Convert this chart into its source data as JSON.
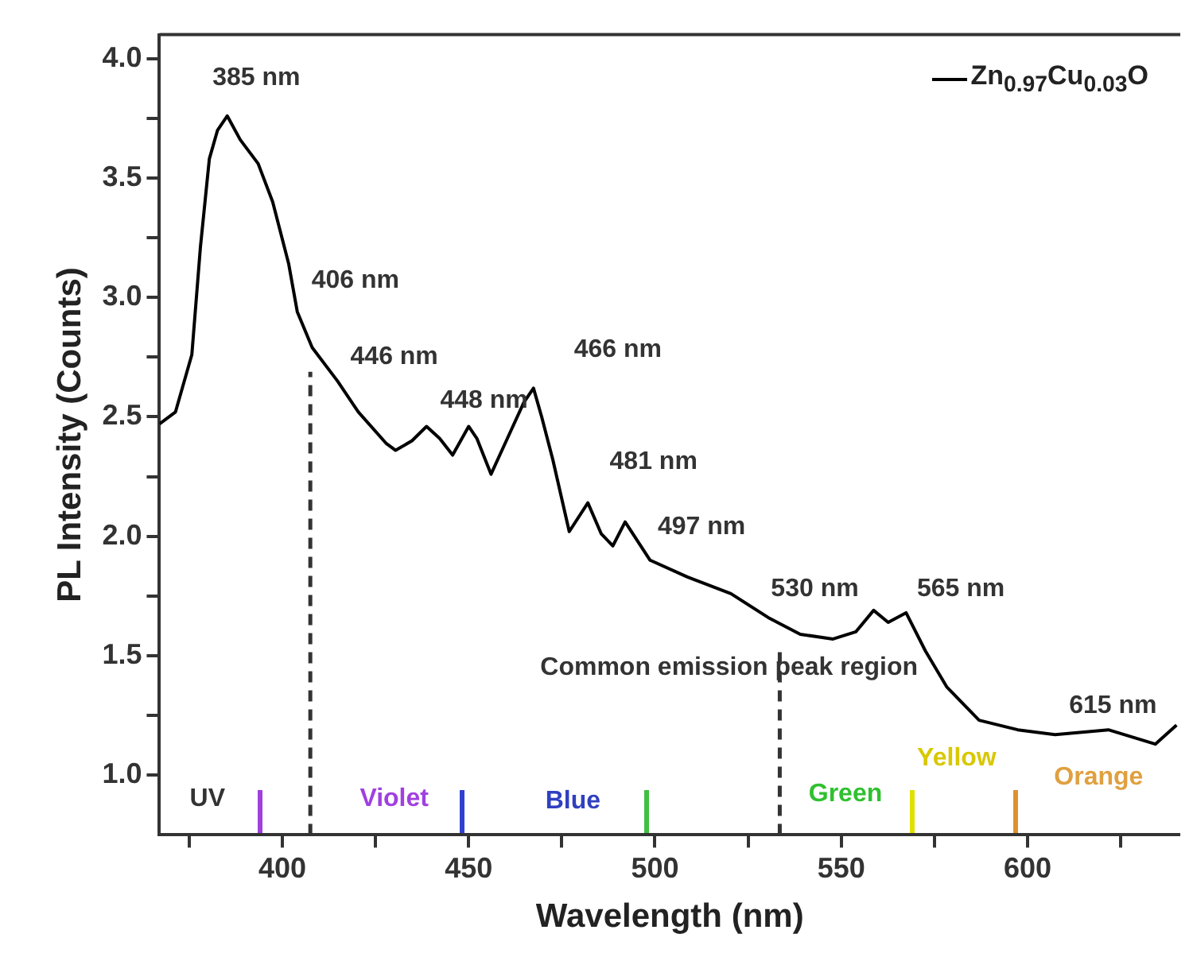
{
  "chart_data": {
    "type": "line",
    "xlabel": "Wavelength (nm)",
    "ylabel": "PL Intensity (Counts)",
    "xlim": [
      367,
      641
    ],
    "ylim": [
      0.75,
      4.1
    ],
    "xticks": [
      {
        "value": 375,
        "label": null
      },
      400,
      {
        "value": 425,
        "label": null
      },
      450,
      {
        "value": 475,
        "label": null
      },
      500,
      {
        "value": 525,
        "label": null
      },
      550,
      {
        "value": 575,
        "label": null
      },
      600,
      {
        "value": 625,
        "label": null
      }
    ],
    "yticks": [
      {
        "value": 1,
        "label": "1.0"
      },
      {
        "value": 1.25,
        "label": null
      },
      1.5,
      {
        "value": 1.75,
        "label": null
      },
      {
        "value": 2,
        "label": "2.0"
      },
      {
        "value": 2.25,
        "label": null
      },
      2.5,
      {
        "value": 2.75,
        "label": null
      },
      {
        "value": 3,
        "label": "3.0"
      },
      {
        "value": 3.25,
        "label": null
      },
      3.5,
      {
        "value": 3.75,
        "label": null
      },
      {
        "value": 4,
        "label": "4.0"
      }
    ],
    "grid": false,
    "legend": "top right",
    "marker": "none",
    "line_style": "solid",
    "x": [
      367,
      371.3,
      375.7,
      378,
      380.4,
      382.6,
      385.2,
      388.7,
      393.5,
      397.4,
      401.7,
      404,
      408,
      414.8,
      420.4,
      427.8,
      430.4,
      434.8,
      438.7,
      442.2,
      445.7,
      450,
      452.2,
      456,
      460.4,
      464.8,
      467.4,
      469.6,
      472.6,
      477,
      482,
      485.6,
      488.7,
      492,
      498.7,
      508.7,
      520.4,
      530.4,
      539,
      547.8,
      553.9,
      558.7,
      562.6,
      567.4,
      572.6,
      578.3,
      587,
      597.4,
      607.4,
      621.7,
      634.3,
      640
    ],
    "series": [
      {
        "name": "Zn$_{0.97}$Cu$_{0.03}$O",
        "color": "#000000",
        "values": [
          2.47,
          2.52,
          2.76,
          3.21,
          3.58,
          3.7,
          3.76,
          3.66,
          3.56,
          3.4,
          3.14,
          2.94,
          2.79,
          2.65,
          2.52,
          2.39,
          2.36,
          2.4,
          2.46,
          2.41,
          2.34,
          2.46,
          2.41,
          2.26,
          2.41,
          2.56,
          2.62,
          2.5,
          2.32,
          2.02,
          2.14,
          2.01,
          1.96,
          2.06,
          1.9,
          1.83,
          1.76,
          1.66,
          1.59,
          1.57,
          1.6,
          1.69,
          1.64,
          1.68,
          1.52,
          1.37,
          1.23,
          1.19,
          1.17,
          1.19,
          1.13,
          1.21
        ]
      }
    ],
    "ref_lines": [
      {
        "axis": "x",
        "value": 407.5,
        "color": "#333333",
        "line_style": "dashed"
      },
      {
        "axis": "x",
        "value": 533.5,
        "color": "#333333",
        "line_style": "dashed"
      }
    ],
    "annotations": [
      "385 nm",
      "406 nm",
      "446 nm",
      "448 nm",
      "466 nm",
      "481 nm",
      "497 nm",
      "530 nm",
      "565 nm",
      "615 nm",
      "Common emission peak region",
      "UV",
      "Violet",
      "Blue",
      "Green",
      "Yellow",
      "Orange"
    ]
  }
}
